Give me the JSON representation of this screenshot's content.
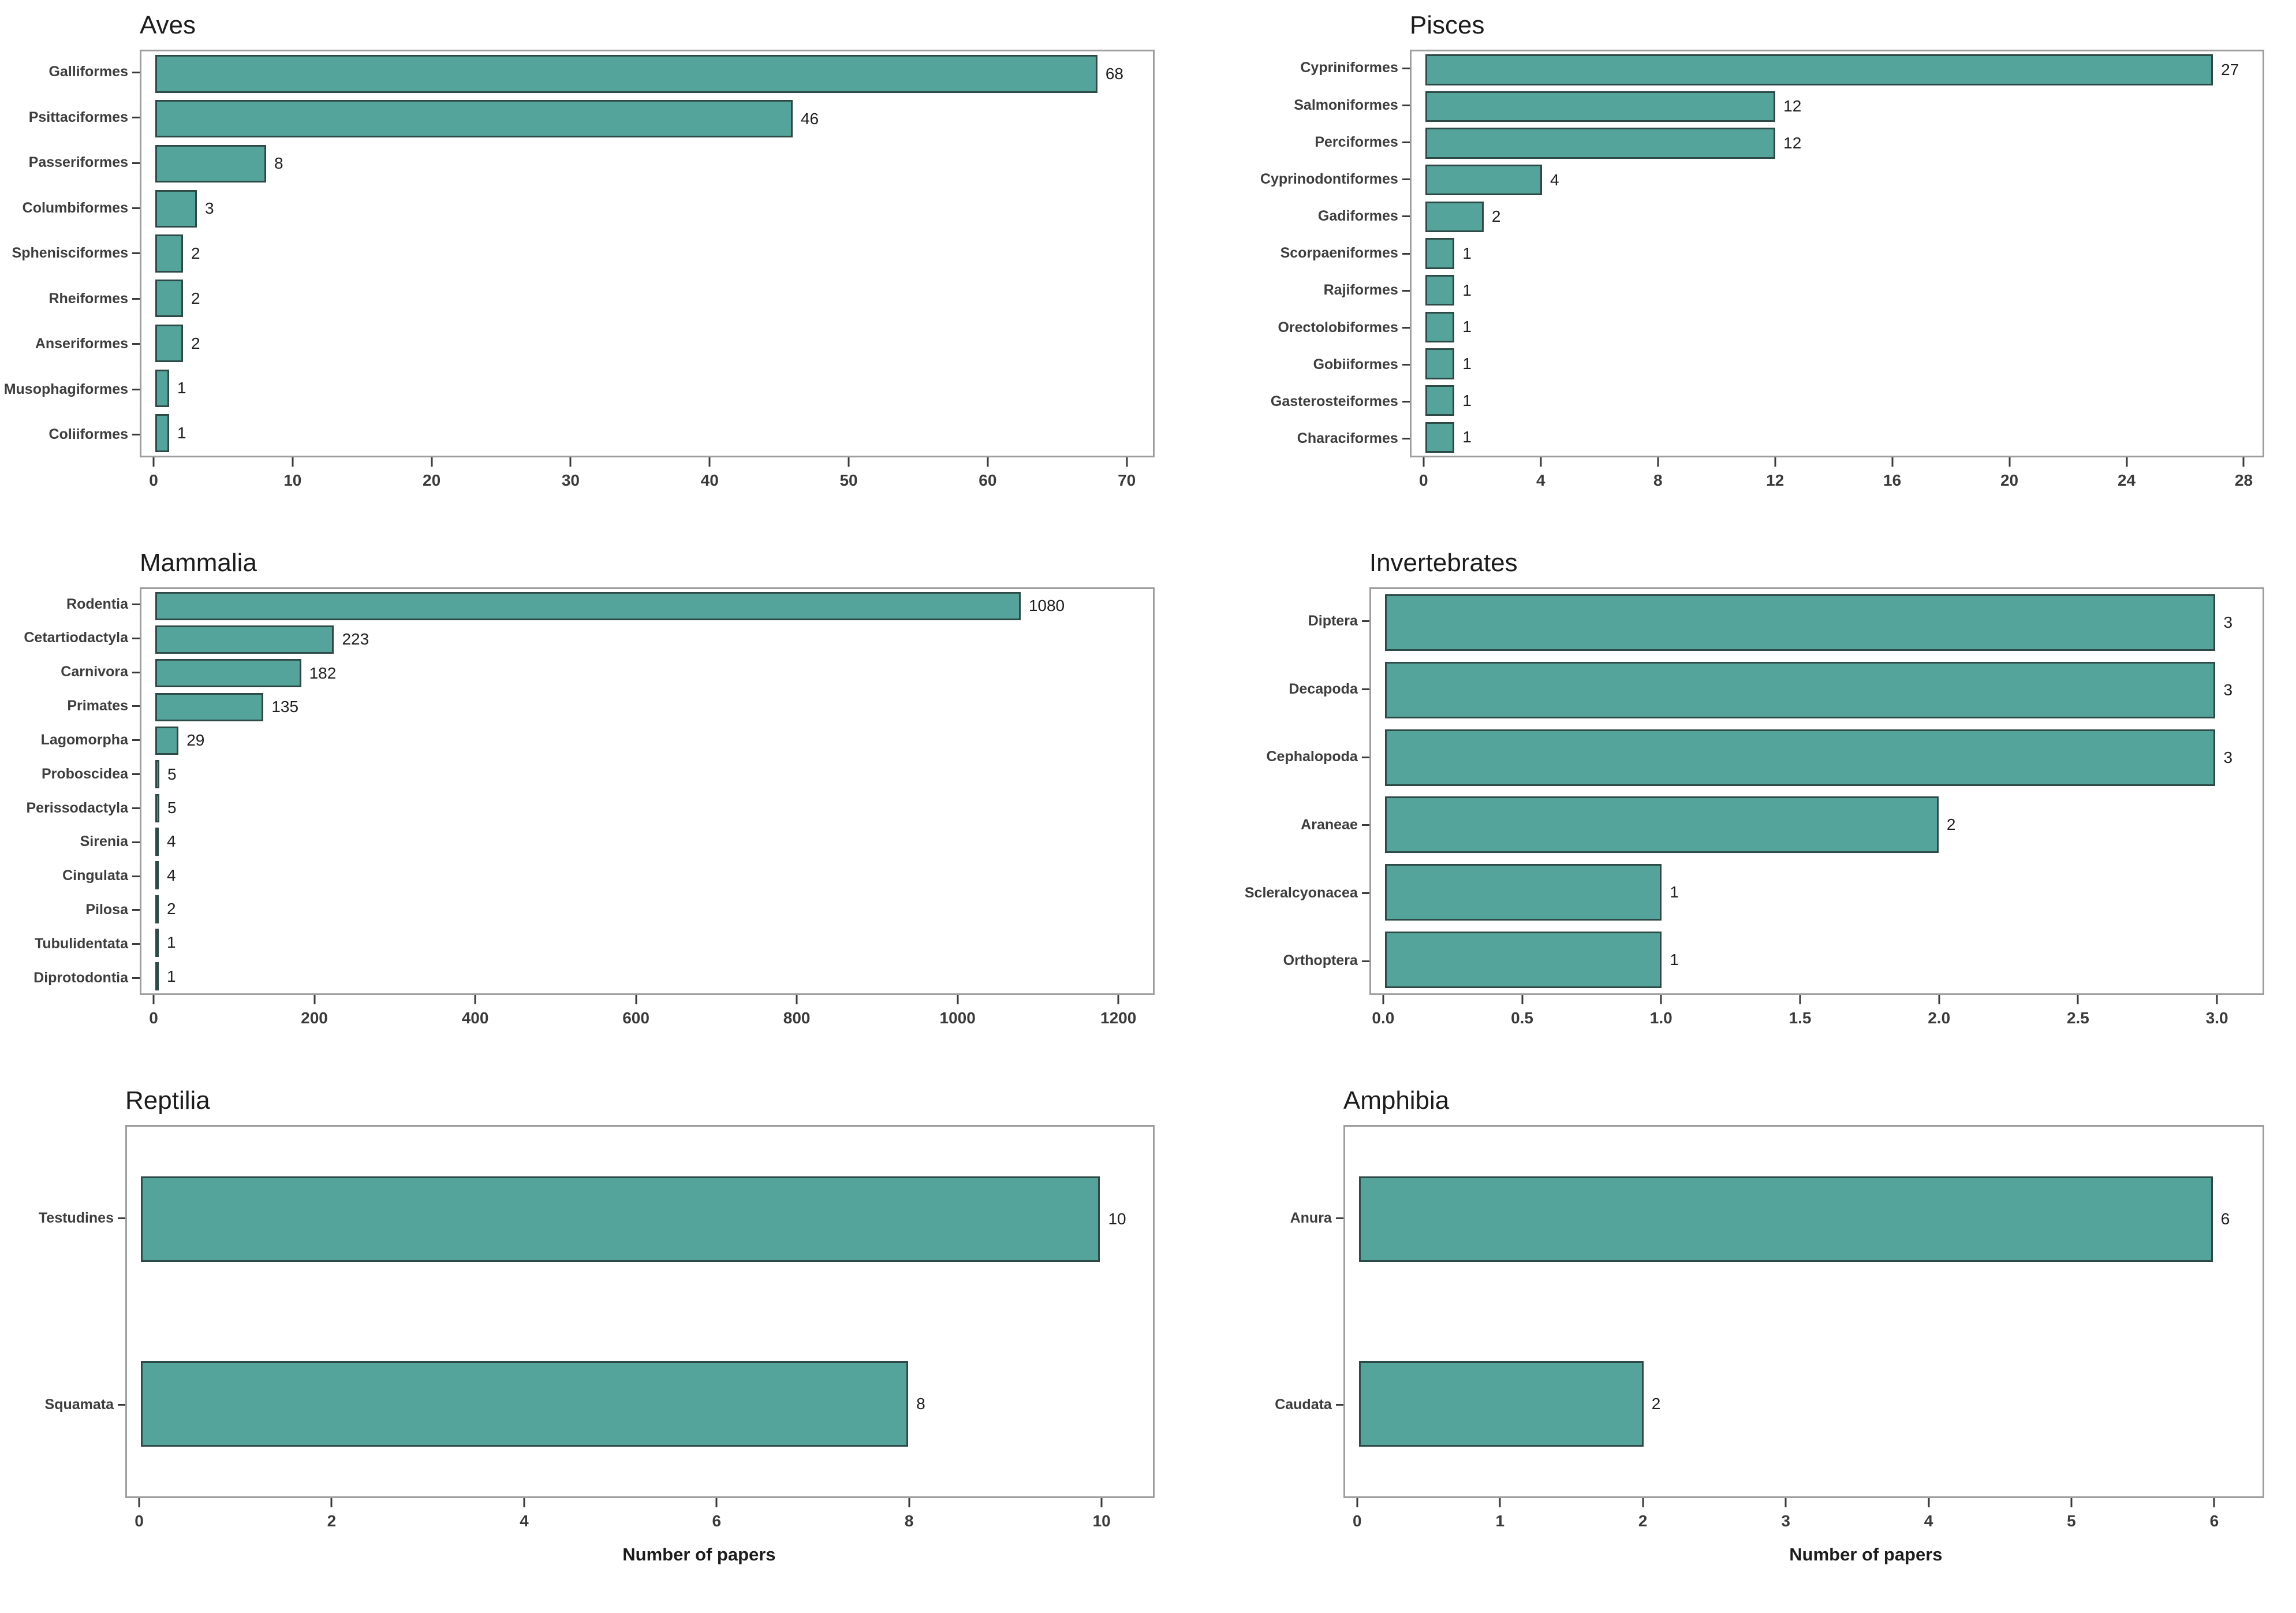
{
  "figure": {
    "xlabel": "Number of papers",
    "bar_fill": "#54a49c",
    "bar_border": "#2e4a47",
    "panel_border": "#9e9e9e",
    "tick_color": "#3a3a3a",
    "text_color": "#3a3a3a"
  },
  "chart_data": [
    {
      "type": "bar",
      "orientation": "horizontal",
      "title": "Aves",
      "categories": [
        "Galliformes",
        "Psittaciformes",
        "Passeriformes",
        "Columbiformes",
        "Sphenisciformes",
        "Rheiformes",
        "Anseriformes",
        "Musophagiformes",
        "Coliiformes"
      ],
      "values": [
        68,
        46,
        8,
        3,
        2,
        2,
        2,
        1,
        1
      ],
      "xlabel": "",
      "ylabel": "",
      "xlim": [
        0,
        72
      ],
      "xmax": 72,
      "tick_values": [
        0,
        10,
        20,
        30,
        40,
        50,
        60,
        70
      ],
      "tick_labels": [
        "0",
        "10",
        "20",
        "30",
        "40",
        "50",
        "60",
        "70"
      ],
      "grid": false,
      "legend": "none"
    },
    {
      "type": "bar",
      "orientation": "horizontal",
      "title": "Pisces",
      "categories": [
        "Cypriniformes",
        "Salmoniformes",
        "Perciformes",
        "Cyprinodontiformes",
        "Gadiformes",
        "Scorpaeniformes",
        "Rajiformes",
        "Orectolobiformes",
        "Gobiiformes",
        "Gasterosteiformes",
        "Characiformes"
      ],
      "values": [
        27,
        12,
        12,
        4,
        2,
        1,
        1,
        1,
        1,
        1,
        1
      ],
      "xlabel": "",
      "ylabel": "",
      "xlim": [
        0,
        28.7
      ],
      "xmax": 28.7,
      "tick_values": [
        0,
        4,
        8,
        12,
        16,
        20,
        24,
        28
      ],
      "tick_labels": [
        "0",
        "4",
        "8",
        "12",
        "16",
        "20",
        "24",
        "28"
      ],
      "grid": false,
      "legend": "none"
    },
    {
      "type": "bar",
      "orientation": "horizontal",
      "title": "Mammalia",
      "categories": [
        "Rodentia",
        "Cetartiodactyla",
        "Carnivora",
        "Primates",
        "Lagomorpha",
        "Proboscidea",
        "Perissodactyla",
        "Sirenia",
        "Cingulata",
        "Pilosa",
        "Tubulidentata",
        "Diprotodontia"
      ],
      "values": [
        1080,
        223,
        182,
        135,
        29,
        5,
        5,
        4,
        4,
        2,
        1,
        1
      ],
      "xlabel": "",
      "ylabel": "",
      "xlim": [
        0,
        1245
      ],
      "xmax": 1245,
      "tick_values": [
        0,
        200,
        400,
        600,
        800,
        1000,
        1200
      ],
      "tick_labels": [
        "0",
        "200",
        "400",
        "600",
        "800",
        "1000",
        "1200"
      ],
      "grid": false,
      "legend": "none"
    },
    {
      "type": "bar",
      "orientation": "horizontal",
      "title": "Invertebrates",
      "categories": [
        "Diptera",
        "Decapoda",
        "Cephalopoda",
        "Araneae",
        "Scleralcyonacea",
        "Orthoptera"
      ],
      "values": [
        3,
        3,
        3,
        2,
        1,
        1
      ],
      "xlabel": "",
      "ylabel": "",
      "xlim": [
        0,
        3.17
      ],
      "xmax": 3.17,
      "tick_values": [
        0,
        0.5,
        1.0,
        1.5,
        2.0,
        2.5,
        3.0
      ],
      "tick_labels": [
        "0.0",
        "0.5",
        "1.0",
        "1.5",
        "2.0",
        "2.5",
        "3.0"
      ],
      "grid": false,
      "legend": "none"
    },
    {
      "type": "bar",
      "orientation": "horizontal",
      "title": "Reptilia",
      "categories": [
        "Testudines",
        "Squamata"
      ],
      "values": [
        10,
        8
      ],
      "xlabel": "Number of papers",
      "ylabel": "",
      "xlim": [
        0,
        10.55
      ],
      "xmax": 10.55,
      "tick_values": [
        0,
        2,
        4,
        6,
        8,
        10
      ],
      "tick_labels": [
        "0",
        "2",
        "4",
        "6",
        "8",
        "10"
      ],
      "grid": false,
      "legend": "none"
    },
    {
      "type": "bar",
      "orientation": "horizontal",
      "title": "Amphibia",
      "categories": [
        "Anura",
        "Caudata"
      ],
      "values": [
        6,
        2
      ],
      "xlabel": "Number of papers",
      "ylabel": "",
      "xlim": [
        0,
        6.35
      ],
      "xmax": 6.35,
      "tick_values": [
        0,
        1,
        2,
        3,
        4,
        5,
        6
      ],
      "tick_labels": [
        "0",
        "1",
        "2",
        "3",
        "4",
        "5",
        "6"
      ],
      "grid": false,
      "legend": "none"
    }
  ]
}
